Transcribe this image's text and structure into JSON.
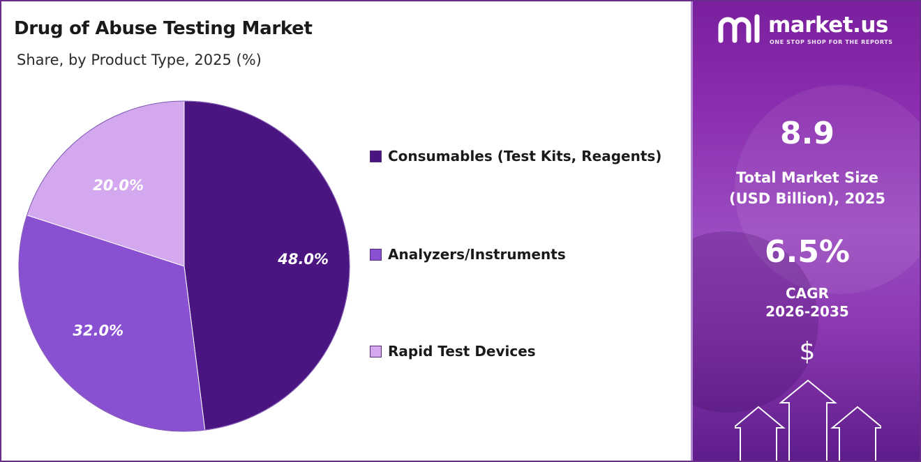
{
  "chart_data": {
    "type": "pie",
    "title": "Drug of Abuse Testing Market",
    "subtitle": "Share, by Product Type, 2025 (%)",
    "series": [
      {
        "name": "Consumables (Test Kits, Reagents)",
        "value": 48.0,
        "label": "48.0%",
        "color": "#4a1580"
      },
      {
        "name": "Analyzers/Instruments",
        "value": 32.0,
        "label": "32.0%",
        "color": "#8a50d2"
      },
      {
        "name": "Rapid Test Devices",
        "value": 20.0,
        "label": "20.0%",
        "color": "#d3a8ee"
      }
    ],
    "start_angle_deg": 0,
    "direction": "clockwise",
    "legend_position": "right"
  },
  "panel": {
    "brand_name": "market.us",
    "brand_tagline": "ONE STOP SHOP FOR THE REPORTS",
    "market_size_value": "8.9",
    "market_size_label_line1": "Total Market Size",
    "market_size_label_line2": "(USD Billion), 2025",
    "cagr_value": "6.5%",
    "cagr_label_line1": "CAGR",
    "cagr_label_line2": "2026-2035",
    "currency_symbol": "$",
    "icons": [
      "market-us-logo-icon",
      "dollar-sign-icon",
      "up-arrow-icon"
    ]
  }
}
